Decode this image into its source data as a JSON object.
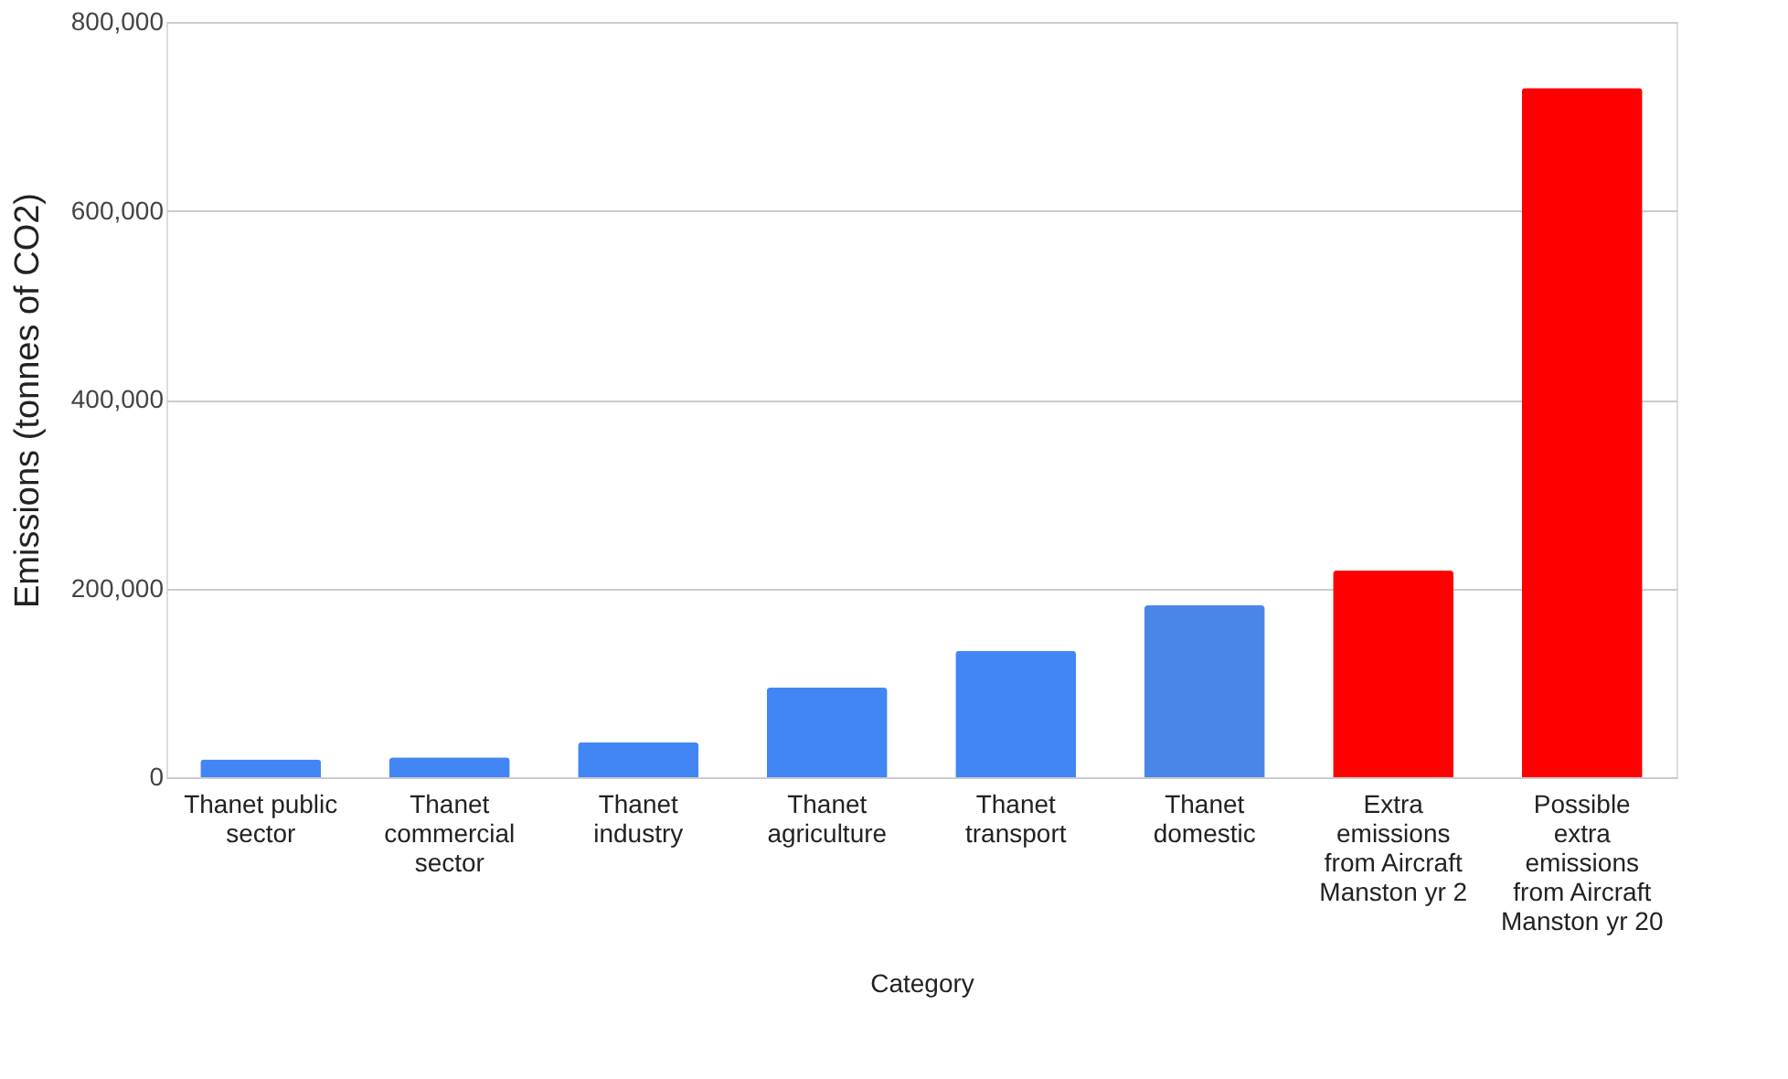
{
  "chart_data": {
    "type": "bar",
    "categories": [
      "Thanet public sector",
      "Thanet commercial sector",
      "Thanet industry",
      "Thanet agriculture",
      "Thanet transport",
      "Thanet domestic",
      "Extra emissions from Aircraft Manston yr 2",
      "Possible extra emissions from Aircraft Manston yr 20"
    ],
    "values": [
      19000,
      21000,
      37000,
      95000,
      134000,
      182000,
      219000,
      730000
    ],
    "colors": [
      "#4285f4",
      "#4285f4",
      "#4285f4",
      "#4285f4",
      "#4285f4",
      "#4a86e8",
      "#ff0000",
      "#ff0000"
    ],
    "xlabel": "Category",
    "ylabel": "Emissions (tonnes of CO2)",
    "ylim": [
      0,
      800000
    ],
    "yticks": [
      0,
      {
        "value": 200000,
        "label": "200,000"
      },
      {
        "value": 400000,
        "label": "400,000"
      },
      {
        "value": 600000,
        "label": "600,000"
      },
      {
        "value": 800000,
        "label": "800,000"
      }
    ],
    "grid": "y"
  }
}
